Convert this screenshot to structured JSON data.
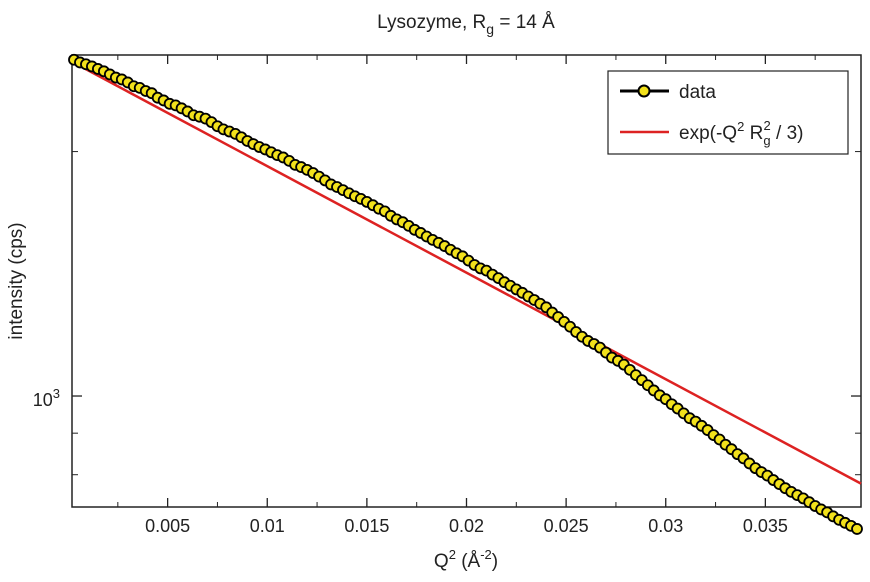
{
  "chart_data": {
    "type": "scatter",
    "title": {
      "main": "Lysozyme,  R",
      "sub": "g",
      "tail": " = 14 Å"
    },
    "xlabel": {
      "main": "Q",
      "sup": "2",
      "mid": " (Å",
      "sup2": "-2",
      "tail": ")"
    },
    "ylabel": "intensity (cps)",
    "xlim": [
      0.0002,
      0.0398
    ],
    "ylim": [
      730,
      2630
    ],
    "y_scale": "log",
    "x_ticks": [
      0.005,
      0.01,
      0.015,
      0.02,
      0.025,
      0.03,
      0.035
    ],
    "x_tick_labels": [
      "0.005",
      "0.01",
      "0.015",
      "0.02",
      "0.025",
      "0.03",
      "0.035"
    ],
    "y_ticks": [
      1000
    ],
    "y_tick_labels": [
      {
        "base": "10",
        "exp": "3"
      }
    ],
    "grid": false,
    "legend": {
      "placement": "top-right",
      "entries": [
        {
          "label": "data"
        },
        {
          "label": {
            "a": "exp(-Q",
            "sup1": "2",
            "b": " R",
            "sub": "g",
            "sup2": "2",
            "c": " / 3)"
          }
        }
      ]
    },
    "series": [
      {
        "name": "data",
        "color": "#000000",
        "marker_fill": "#f2e11b",
        "x": [
          0.0003,
          0.0006,
          0.0009,
          0.0012,
          0.0015,
          0.0018,
          0.0021,
          0.0024,
          0.0027,
          0.003,
          0.0033,
          0.0036,
          0.0039,
          0.0042,
          0.0045,
          0.0048,
          0.0051,
          0.0054,
          0.0057,
          0.006,
          0.0063,
          0.0066,
          0.0069,
          0.0072,
          0.0075,
          0.0078,
          0.0081,
          0.0084,
          0.0087,
          0.009,
          0.0093,
          0.0096,
          0.0099,
          0.0102,
          0.0105,
          0.0108,
          0.0111,
          0.0114,
          0.0117,
          0.012,
          0.0123,
          0.0126,
          0.0129,
          0.0132,
          0.0135,
          0.0138,
          0.0141,
          0.0144,
          0.0147,
          0.015,
          0.0153,
          0.0156,
          0.0159,
          0.0162,
          0.0165,
          0.0168,
          0.0171,
          0.0174,
          0.0177,
          0.018,
          0.0183,
          0.0186,
          0.0189,
          0.0192,
          0.0195,
          0.0198,
          0.0201,
          0.0204,
          0.0207,
          0.021,
          0.0213,
          0.0216,
          0.0219,
          0.0222,
          0.0225,
          0.0228,
          0.0231,
          0.0234,
          0.0237,
          0.024,
          0.0243,
          0.0246,
          0.0249,
          0.0252,
          0.0255,
          0.0258,
          0.0261,
          0.0264,
          0.0267,
          0.027,
          0.0273,
          0.0276,
          0.0279,
          0.0282,
          0.0285,
          0.0288,
          0.0291,
          0.0294,
          0.0297,
          0.03,
          0.0303,
          0.0306,
          0.0309,
          0.0312,
          0.0315,
          0.0318,
          0.0321,
          0.0324,
          0.0327,
          0.033,
          0.0333,
          0.0336,
          0.0339,
          0.0342,
          0.0345,
          0.0348,
          0.0351,
          0.0354,
          0.0357,
          0.036,
          0.0363,
          0.0366,
          0.0369,
          0.0372,
          0.0375,
          0.0378,
          0.0381,
          0.0384,
          0.0387,
          0.039,
          0.0393,
          0.0396
        ],
        "y": [
          2595,
          2575,
          2562,
          2546,
          2528,
          2511,
          2489,
          2467,
          2454,
          2433,
          2407,
          2396,
          2375,
          2360,
          2330,
          2312,
          2290,
          2280,
          2261,
          2241,
          2217,
          2208,
          2196,
          2174,
          2149,
          2130,
          2117,
          2103,
          2083,
          2061,
          2043,
          2026,
          2012,
          1996,
          1980,
          1967,
          1948,
          1926,
          1914,
          1899,
          1882,
          1863,
          1843,
          1822,
          1809,
          1793,
          1777,
          1762,
          1749,
          1734,
          1718,
          1701,
          1688,
          1667,
          1650,
          1637,
          1620,
          1602,
          1588,
          1572,
          1557,
          1544,
          1530,
          1514,
          1499,
          1486,
          1468,
          1450,
          1436,
          1427,
          1411,
          1397,
          1381,
          1367,
          1353,
          1340,
          1326,
          1313,
          1299,
          1286,
          1267,
          1251,
          1234,
          1217,
          1199,
          1183,
          1169,
          1159,
          1147,
          1131,
          1115,
          1105,
          1093,
          1077,
          1061,
          1046,
          1031,
          1016,
          1002,
          991,
          977,
          965,
          952,
          939,
          930,
          919,
          908,
          895,
          884,
          871,
          860,
          848,
          838,
          826,
          815,
          806,
          798,
          788,
          779,
          770,
          762,
          755,
          748,
          740,
          732,
          725,
          719,
          711,
          704,
          698,
          692,
          686
        ]
      },
      {
        "name": "exp(-Q² Rg² / 3)",
        "color": "#dd2222",
        "x": [
          0.0002,
          0.0398
        ],
        "y": [
          2580,
          780
        ]
      }
    ]
  }
}
